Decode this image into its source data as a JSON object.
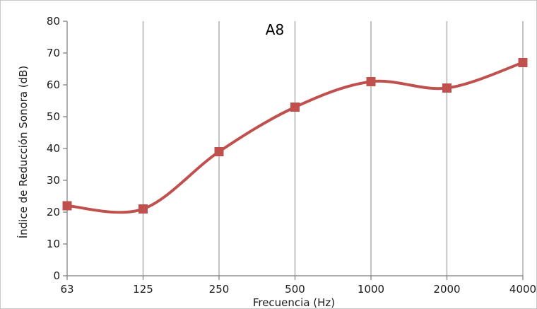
{
  "chart_data": {
    "type": "line",
    "title": "A8",
    "xlabel": "Frecuencia (Hz)",
    "ylabel": "Índice de Reducción Sonora (dB)",
    "categories": [
      "63",
      "125",
      "250",
      "500",
      "1000",
      "2000",
      "4000"
    ],
    "series": [
      {
        "values": [
          22,
          21,
          39,
          53,
          61,
          59,
          67
        ],
        "color": "#c0504d",
        "marker": "square",
        "smooth": true
      }
    ],
    "ylim": [
      0,
      80
    ],
    "yticks": [
      0,
      10,
      20,
      30,
      40,
      50,
      60,
      70,
      80
    ],
    "grid": "vertical",
    "legend": "none"
  }
}
